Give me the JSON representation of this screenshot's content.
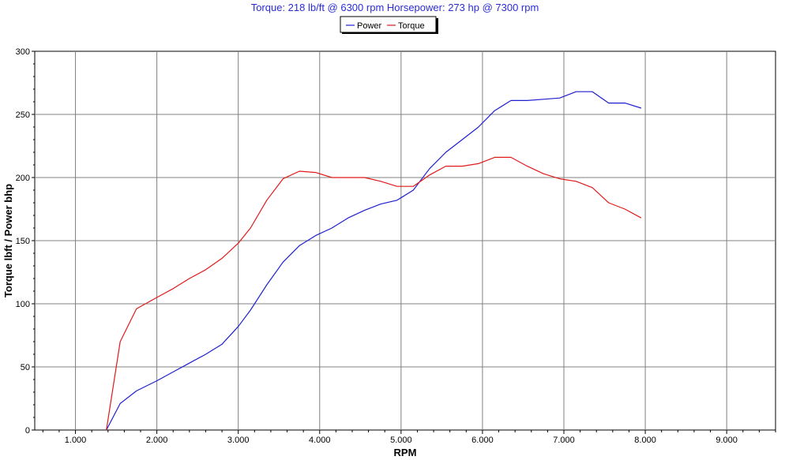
{
  "header": {
    "subtitle": "Torque:  218 lb/ft @   6300 rpm  Horsepower:  273 hp @   7300 rpm"
  },
  "colors": {
    "power": "#1f1fd0",
    "torque": "#e01a1a",
    "subtitle": "#2b2bd6",
    "grid": "#808080",
    "plot_background": "#ffffff"
  },
  "chart_data": {
    "type": "line",
    "title": "",
    "subtitle": "Torque:  218 lb/ft @   6300 rpm  Horsepower:  273 hp @   7300 rpm",
    "xlabel": "RPM",
    "ylabel": "Torque lbft / Power bhp",
    "xlim": [
      0.5,
      9.6
    ],
    "ylim": [
      0,
      300
    ],
    "x_ticks": [
      1,
      2,
      3,
      4,
      5,
      6,
      7,
      8,
      9
    ],
    "x_tick_labels": [
      "1.000",
      "2.000",
      "3.000",
      "4.000",
      "5.000",
      "6.000",
      "7.000",
      "8.000",
      "9.000"
    ],
    "y_ticks": [
      0,
      50,
      100,
      150,
      200,
      250,
      300
    ],
    "y_tick_labels": [
      "0",
      "50",
      "100",
      "150",
      "200",
      "250",
      "300"
    ],
    "grid": true,
    "legend_position": "top-center",
    "series": [
      {
        "name": "Power",
        "color": "#1f1fd0",
        "x": [
          1.38,
          1.55,
          1.75,
          2.0,
          2.2,
          2.4,
          2.6,
          2.8,
          3.0,
          3.15,
          3.35,
          3.55,
          3.75,
          3.95,
          4.15,
          4.35,
          4.55,
          4.75,
          4.95,
          5.15,
          5.35,
          5.55,
          5.75,
          5.95,
          6.15,
          6.35,
          6.55,
          6.75,
          6.95,
          7.15,
          7.35,
          7.55,
          7.75,
          7.95
        ],
        "values": [
          0,
          21,
          31,
          39,
          46,
          53,
          60,
          68,
          82,
          95,
          115,
          133,
          146,
          154,
          160,
          168,
          174,
          179,
          182,
          190,
          207,
          220,
          230,
          240,
          253,
          261,
          261,
          262,
          263,
          268,
          268,
          259,
          259,
          255
        ]
      },
      {
        "name": "Torque",
        "color": "#e01a1a",
        "x": [
          1.38,
          1.55,
          1.75,
          2.0,
          2.2,
          2.4,
          2.6,
          2.8,
          3.0,
          3.15,
          3.35,
          3.55,
          3.75,
          3.95,
          4.15,
          4.35,
          4.55,
          4.75,
          4.95,
          5.15,
          5.35,
          5.55,
          5.75,
          5.95,
          6.15,
          6.35,
          6.55,
          6.75,
          6.95,
          7.15,
          7.35,
          7.55,
          7.75,
          7.95
        ],
        "values": [
          0,
          70,
          96,
          105,
          112,
          120,
          127,
          136,
          148,
          160,
          182,
          199,
          205,
          204,
          200,
          200,
          200,
          197,
          193,
          193,
          202,
          209,
          209,
          211,
          216,
          216,
          209,
          203,
          199,
          197,
          192,
          180,
          175,
          168
        ]
      }
    ]
  }
}
